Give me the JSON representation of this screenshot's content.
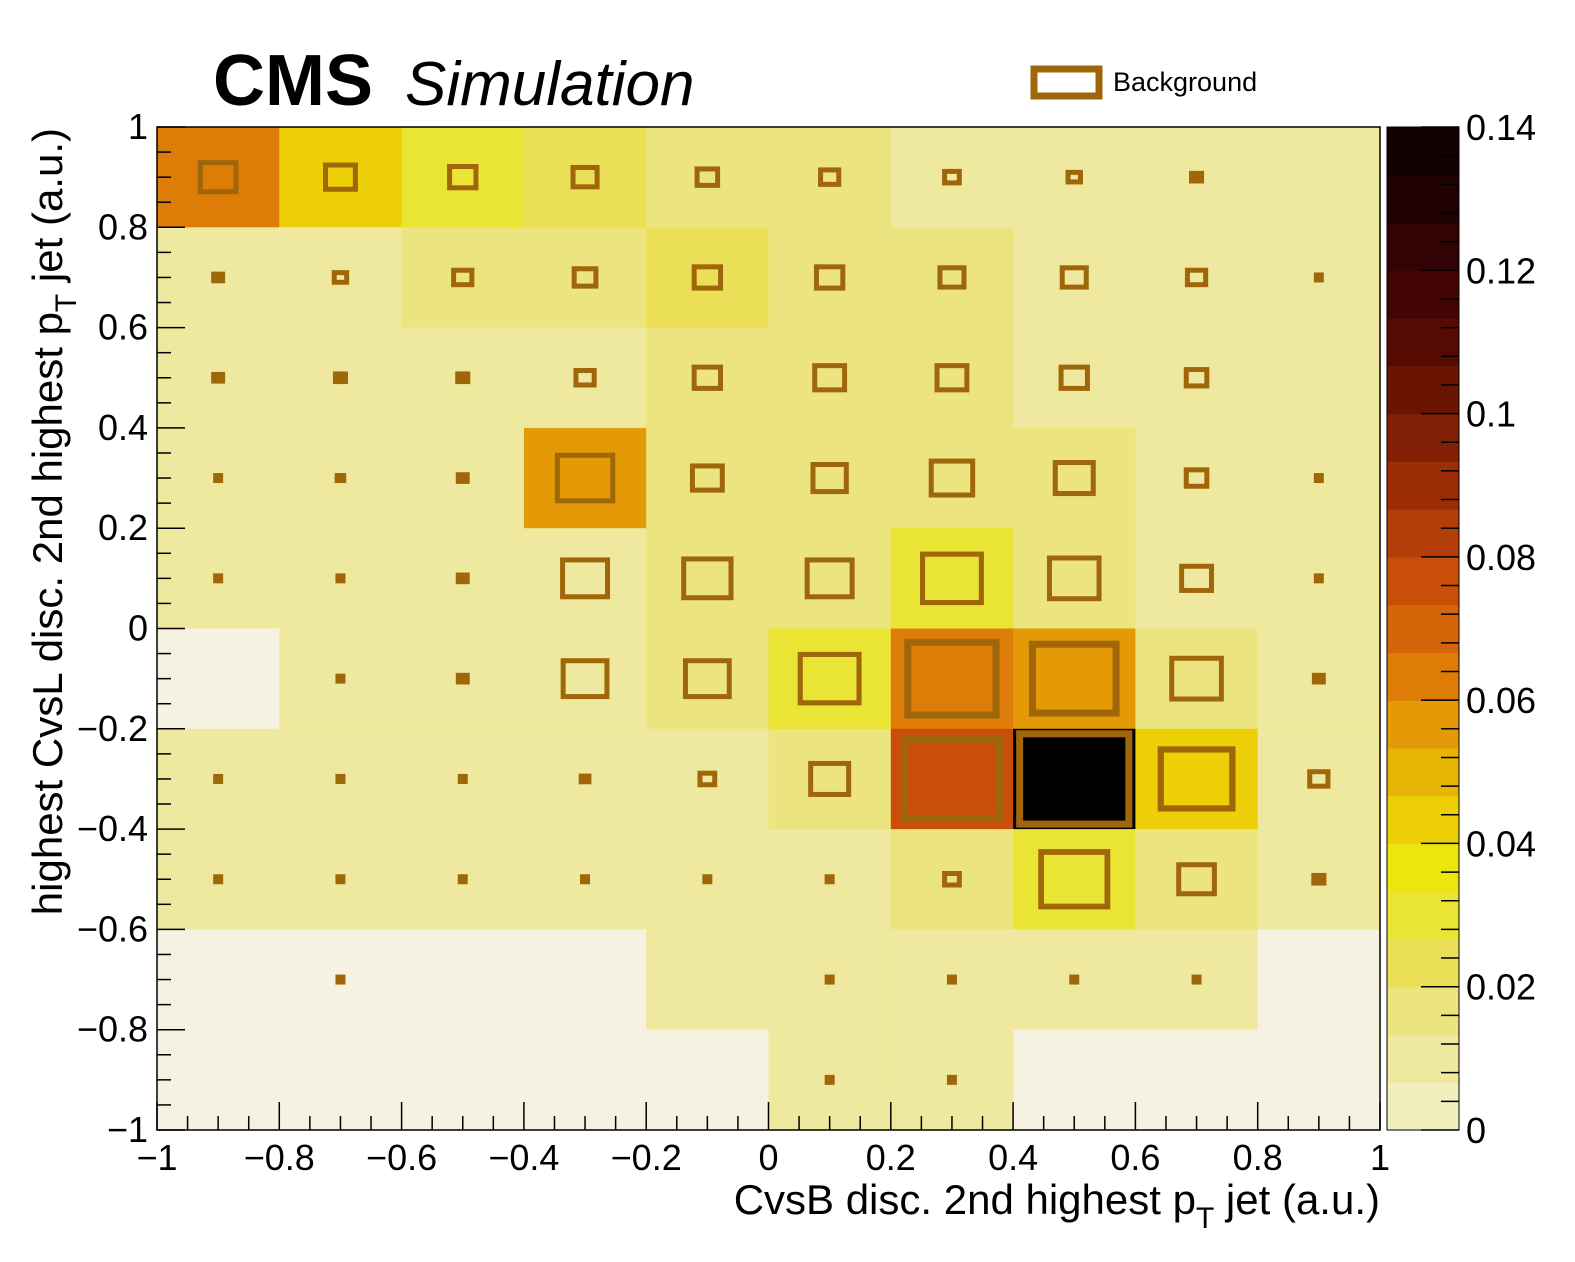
{
  "header": {
    "experiment": "CMS",
    "label": "Simulation"
  },
  "chart_data": {
    "type": "heatmap",
    "subtype": "box",
    "title": "",
    "xlabel": "CvsB disc. 2nd highest p",
    "xlabel_sub": "T",
    "xlabel_suffix": " jet (a.u.)",
    "ylabel": "highest CvsL disc. 2nd highest p",
    "ylabel_sub": "T",
    "ylabel_suffix": " jet (a.u.)",
    "xlim": [
      -1,
      1
    ],
    "ylim": [
      -1,
      1
    ],
    "zlim": [
      0,
      0.14
    ],
    "x_ticks": [
      "−1",
      "−0.8",
      "−0.6",
      "−0.4",
      "−0.2",
      "0",
      "0.2",
      "0.4",
      "0.6",
      "0.8",
      "1"
    ],
    "y_ticks": [
      "−1",
      "−0.8",
      "−0.6",
      "−0.4",
      "−0.2",
      "0",
      "0.2",
      "0.4",
      "0.6",
      "0.8",
      "1"
    ],
    "z_ticks": [
      "0",
      "0.02",
      "0.04",
      "0.06",
      "0.08",
      "0.1",
      "0.12",
      "0.14"
    ],
    "x_bin_centers": [
      -0.9,
      -0.7,
      -0.5,
      -0.3,
      -0.1,
      0.1,
      0.3,
      0.5,
      0.7,
      0.9
    ],
    "y_bin_centers_top_to_bottom": [
      0.9,
      0.7,
      0.5,
      0.3,
      0.1,
      -0.1,
      -0.3,
      -0.5,
      -0.7,
      -0.9
    ],
    "signal_colz": [
      [
        0.058,
        0.04,
        0.03,
        0.02,
        0.01,
        0.01,
        0.004,
        0.004,
        0.004,
        0.004
      ],
      [
        0.004,
        0.004,
        0.01,
        0.01,
        0.02,
        0.01,
        0.01,
        0.004,
        0.004,
        0.004
      ],
      [
        0.004,
        0.004,
        0.004,
        0.004,
        0.01,
        0.01,
        0.01,
        0.004,
        0.004,
        0.004
      ],
      [
        0.004,
        0.004,
        0.004,
        0.05,
        0.01,
        0.01,
        0.01,
        0.01,
        0.004,
        0.004
      ],
      [
        0.004,
        0.004,
        0.004,
        0.004,
        0.01,
        0.015,
        0.025,
        0.015,
        0.004,
        0.004
      ],
      [
        0.0,
        0.004,
        0.004,
        0.004,
        0.01,
        0.025,
        0.062,
        0.052,
        0.015,
        0.004
      ],
      [
        0.004,
        0.004,
        0.004,
        0.004,
        0.004,
        0.015,
        0.074,
        0.14,
        0.038,
        0.004
      ],
      [
        0.004,
        0.004,
        0.004,
        0.004,
        0.004,
        0.004,
        0.01,
        0.03,
        0.01,
        0.004
      ],
      [
        0.001,
        0.001,
        0.001,
        0.001,
        0.004,
        0.004,
        0.004,
        0.004,
        0.004,
        0.001
      ],
      [
        0.001,
        0.001,
        0.001,
        0.001,
        0.001,
        0.004,
        0.004,
        0.001,
        0.001,
        0.001
      ]
    ],
    "background_box_fraction": [
      [
        0.35,
        0.3,
        0.27,
        0.25,
        0.22,
        0.2,
        0.17,
        0.15,
        0.13,
        0.0
      ],
      [
        0.12,
        0.15,
        0.2,
        0.23,
        0.27,
        0.27,
        0.25,
        0.25,
        0.2,
        0.06
      ],
      [
        0.12,
        0.13,
        0.13,
        0.2,
        0.27,
        0.3,
        0.3,
        0.27,
        0.22,
        0.0
      ],
      [
        0.06,
        0.1,
        0.12,
        0.52,
        0.3,
        0.33,
        0.4,
        0.37,
        0.22,
        0.06
      ],
      [
        0.06,
        0.08,
        0.12,
        0.43,
        0.45,
        0.43,
        0.55,
        0.47,
        0.3,
        0.08
      ],
      [
        0.0,
        0.08,
        0.12,
        0.42,
        0.42,
        0.55,
        0.82,
        0.78,
        0.47,
        0.12
      ],
      [
        0.06,
        0.06,
        0.08,
        0.11,
        0.17,
        0.37,
        0.88,
        1.0,
        0.67,
        0.2
      ],
      [
        0.06,
        0.06,
        0.06,
        0.06,
        0.08,
        0.08,
        0.17,
        0.62,
        0.35,
        0.13
      ],
      [
        0.0,
        0.06,
        0.0,
        0.0,
        0.0,
        0.06,
        0.08,
        0.08,
        0.06,
        0.0
      ],
      [
        0.0,
        0.0,
        0.0,
        0.0,
        0.0,
        0.06,
        0.06,
        0.0,
        0.0,
        0.0
      ]
    ],
    "legend": {
      "entries": [
        "Background"
      ],
      "placement": "top-right"
    },
    "colors": {
      "box_line": "#a0660a",
      "frame": "#000000",
      "palette": [
        "#f2efbf",
        "#efe99f",
        "#ece47e",
        "#ebdf58",
        "#eae534",
        "#ece60e",
        "#eccf06",
        "#e8b506",
        "#e39a06",
        "#de7c08",
        "#d66409",
        "#c94f08",
        "#b33e07",
        "#9c2d05",
        "#812004",
        "#6a1402",
        "#550a02",
        "#430504",
        "#320304",
        "#210203",
        "#120101",
        "#000000"
      ]
    }
  }
}
